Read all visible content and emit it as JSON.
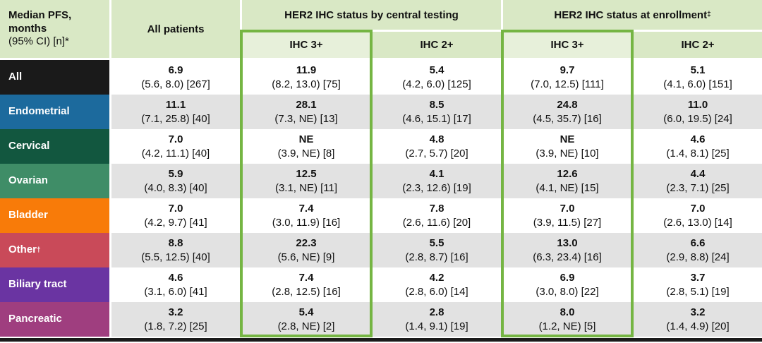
{
  "table": {
    "header": {
      "row_header_line1": "Median PFS,",
      "row_header_line2": "months",
      "row_header_line3": "(95% CI) [n]*",
      "all_patients": "All patients",
      "central_group": "HER2 IHC status by central testing",
      "central_group_sup": "",
      "enrollment_group": "HER2 IHC status at enrollment",
      "enrollment_group_sup": "‡",
      "sub_ihc3_central": "IHC 3+",
      "sub_ihc2_central": "IHC 2+",
      "sub_ihc3_enrollment": "IHC 3+",
      "sub_ihc2_enrollment": "IHC 2+"
    },
    "colors": {
      "header_bg": "#d9e8c5",
      "subheader_highlight_bg": "#e7f0da",
      "stripe_bg": "#e2e2e2",
      "highlight_border": "#75b543",
      "bottom_bar": "#1a1a1a"
    },
    "rows": [
      {
        "label": "All",
        "sup": "",
        "color": "#1a1a1a",
        "cells": [
          {
            "median": "6.9",
            "ci": "(5.6, 8.0) [267]"
          },
          {
            "median": "11.9",
            "ci": "(8.2, 13.0) [75]"
          },
          {
            "median": "5.4",
            "ci": "(4.2, 6.0) [125]"
          },
          {
            "median": "9.7",
            "ci": "(7.0, 12.5) [111]"
          },
          {
            "median": "5.1",
            "ci": "(4.1, 6.0) [151]"
          }
        ]
      },
      {
        "label": "Endometrial",
        "sup": "",
        "color": "#1c6a9d",
        "cells": [
          {
            "median": "11.1",
            "ci": "(7.1, 25.8) [40]"
          },
          {
            "median": "28.1",
            "ci": "(7.3, NE) [13]"
          },
          {
            "median": "8.5",
            "ci": "(4.6, 15.1) [17]"
          },
          {
            "median": "24.8",
            "ci": "(4.5, 35.7) [16]"
          },
          {
            "median": "11.0",
            "ci": "(6.0, 19.5) [24]"
          }
        ]
      },
      {
        "label": "Cervical",
        "sup": "",
        "color": "#12573f",
        "cells": [
          {
            "median": "7.0",
            "ci": "(4.2, 11.1) [40]"
          },
          {
            "median": "NE",
            "ci": "(3.9, NE) [8]"
          },
          {
            "median": "4.8",
            "ci": "(2.7, 5.7) [20]"
          },
          {
            "median": "NE",
            "ci": "(3.9, NE) [10]"
          },
          {
            "median": "4.6",
            "ci": "(1.4, 8.1) [25]"
          }
        ]
      },
      {
        "label": "Ovarian",
        "sup": "",
        "color": "#3f8d67",
        "cells": [
          {
            "median": "5.9",
            "ci": "(4.0, 8.3) [40]"
          },
          {
            "median": "12.5",
            "ci": "(3.1, NE) [11]"
          },
          {
            "median": "4.1",
            "ci": "(2.3, 12.6) [19]"
          },
          {
            "median": "12.6",
            "ci": "(4.1, NE) [15]"
          },
          {
            "median": "4.4",
            "ci": "(2.3, 7.1) [25]"
          }
        ]
      },
      {
        "label": "Bladder",
        "sup": "",
        "color": "#f87b09",
        "cells": [
          {
            "median": "7.0",
            "ci": "(4.2, 9.7) [41]"
          },
          {
            "median": "7.4",
            "ci": "(3.0, 11.9) [16]"
          },
          {
            "median": "7.8",
            "ci": "(2.6, 11.6) [20]"
          },
          {
            "median": "7.0",
            "ci": "(3.9, 11.5) [27]"
          },
          {
            "median": "7.0",
            "ci": "(2.6, 13.0) [14]"
          }
        ]
      },
      {
        "label": "Other",
        "sup": "†",
        "color": "#c94a59",
        "cells": [
          {
            "median": "8.8",
            "ci": "(5.5, 12.5) [40]"
          },
          {
            "median": "22.3",
            "ci": "(5.6, NE) [9]"
          },
          {
            "median": "5.5",
            "ci": "(2.8, 8.7) [16]"
          },
          {
            "median": "13.0",
            "ci": "(6.3, 23.4) [16]"
          },
          {
            "median": "6.6",
            "ci": "(2.9, 8.8) [24]"
          }
        ]
      },
      {
        "label": "Biliary tract",
        "sup": "",
        "color": "#6a34a2",
        "cells": [
          {
            "median": "4.6",
            "ci": "(3.1, 6.0) [41]"
          },
          {
            "median": "7.4",
            "ci": "(2.8, 12.5) [16]"
          },
          {
            "median": "4.2",
            "ci": "(2.8, 6.0) [14]"
          },
          {
            "median": "6.9",
            "ci": "(3.0, 8.0) [22]"
          },
          {
            "median": "3.7",
            "ci": "(2.8, 5.1) [19]"
          }
        ]
      },
      {
        "label": "Pancreatic",
        "sup": "",
        "color": "#9f3e7f",
        "cells": [
          {
            "median": "3.2",
            "ci": "(1.8, 7.2) [25]"
          },
          {
            "median": "5.4",
            "ci": "(2.8, NE) [2]"
          },
          {
            "median": "2.8",
            "ci": "(1.4, 9.1) [19]"
          },
          {
            "median": "8.0",
            "ci": "(1.2, NE) [5]"
          },
          {
            "median": "3.2",
            "ci": "(1.4, 4.9) [20]"
          }
        ]
      }
    ]
  },
  "chart_data": {
    "type": "table",
    "title": "Median PFS, months (95% CI) [n]*",
    "column_groups": [
      "All patients",
      "HER2 IHC status by central testing",
      "HER2 IHC status at enrollment‡"
    ],
    "columns": [
      "All patients",
      "Central IHC 3+",
      "Central IHC 2+",
      "Enrollment IHC 3+",
      "Enrollment IHC 2+"
    ],
    "rows": [
      {
        "cohort": "All",
        "median_pfs": [
          6.9,
          11.9,
          5.4,
          9.7,
          5.1
        ],
        "ci": [
          [
            5.6,
            8.0
          ],
          [
            8.2,
            13.0
          ],
          [
            4.2,
            6.0
          ],
          [
            7.0,
            12.5
          ],
          [
            4.1,
            6.0
          ]
        ],
        "n": [
          267,
          75,
          125,
          111,
          151
        ]
      },
      {
        "cohort": "Endometrial",
        "median_pfs": [
          11.1,
          28.1,
          8.5,
          24.8,
          11.0
        ],
        "ci": [
          [
            7.1,
            25.8
          ],
          [
            7.3,
            "NE"
          ],
          [
            4.6,
            15.1
          ],
          [
            4.5,
            35.7
          ],
          [
            6.0,
            19.5
          ]
        ],
        "n": [
          40,
          13,
          17,
          16,
          24
        ]
      },
      {
        "cohort": "Cervical",
        "median_pfs": [
          7.0,
          "NE",
          4.8,
          "NE",
          4.6
        ],
        "ci": [
          [
            4.2,
            11.1
          ],
          [
            3.9,
            "NE"
          ],
          [
            2.7,
            5.7
          ],
          [
            3.9,
            "NE"
          ],
          [
            1.4,
            8.1
          ]
        ],
        "n": [
          40,
          8,
          20,
          10,
          25
        ]
      },
      {
        "cohort": "Ovarian",
        "median_pfs": [
          5.9,
          12.5,
          4.1,
          12.6,
          4.4
        ],
        "ci": [
          [
            4.0,
            8.3
          ],
          [
            3.1,
            "NE"
          ],
          [
            2.3,
            12.6
          ],
          [
            4.1,
            "NE"
          ],
          [
            2.3,
            7.1
          ]
        ],
        "n": [
          40,
          11,
          19,
          15,
          25
        ]
      },
      {
        "cohort": "Bladder",
        "median_pfs": [
          7.0,
          7.4,
          7.8,
          7.0,
          7.0
        ],
        "ci": [
          [
            4.2,
            9.7
          ],
          [
            3.0,
            11.9
          ],
          [
            2.6,
            11.6
          ],
          [
            3.9,
            11.5
          ],
          [
            2.6,
            13.0
          ]
        ],
        "n": [
          41,
          16,
          20,
          27,
          14
        ]
      },
      {
        "cohort": "Other†",
        "median_pfs": [
          8.8,
          22.3,
          5.5,
          13.0,
          6.6
        ],
        "ci": [
          [
            5.5,
            12.5
          ],
          [
            5.6,
            "NE"
          ],
          [
            2.8,
            8.7
          ],
          [
            6.3,
            23.4
          ],
          [
            2.9,
            8.8
          ]
        ],
        "n": [
          40,
          9,
          16,
          16,
          24
        ]
      },
      {
        "cohort": "Biliary tract",
        "median_pfs": [
          4.6,
          7.4,
          4.2,
          6.9,
          3.7
        ],
        "ci": [
          [
            3.1,
            6.0
          ],
          [
            2.8,
            12.5
          ],
          [
            2.8,
            6.0
          ],
          [
            3.0,
            8.0
          ],
          [
            2.8,
            5.1
          ]
        ],
        "n": [
          41,
          16,
          14,
          22,
          19
        ]
      },
      {
        "cohort": "Pancreatic",
        "median_pfs": [
          3.2,
          5.4,
          2.8,
          8.0,
          3.2
        ],
        "ci": [
          [
            1.8,
            7.2
          ],
          [
            2.8,
            "NE"
          ],
          [
            1.4,
            9.1
          ],
          [
            1.2,
            "NE"
          ],
          [
            1.4,
            4.9
          ]
        ],
        "n": [
          25,
          2,
          19,
          5,
          20
        ]
      }
    ],
    "highlighted_columns": [
      "Central IHC 3+",
      "Enrollment IHC 3+"
    ]
  }
}
